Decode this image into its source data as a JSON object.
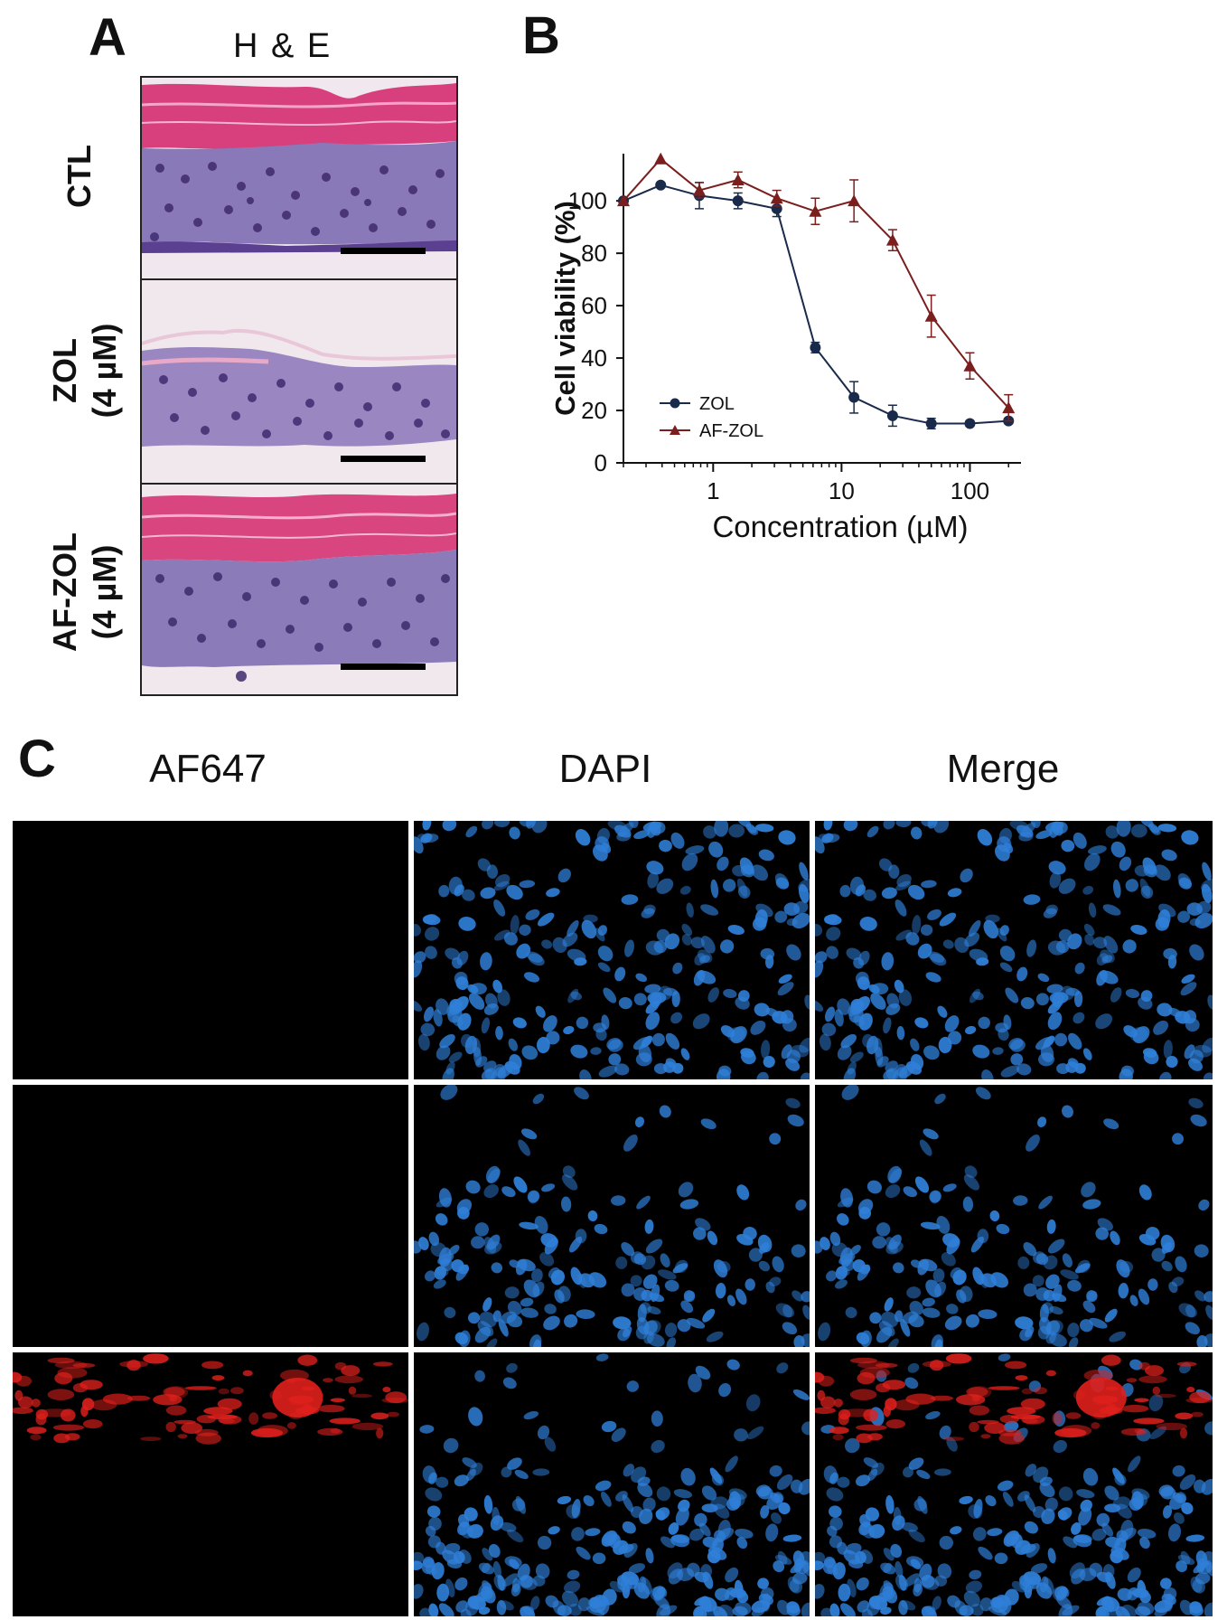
{
  "panel_a": {
    "label": "A",
    "title": "H & E",
    "rows": [
      {
        "line1": "CTL",
        "line2": ""
      },
      {
        "line1": "ZOL",
        "line2": "(4 µM)"
      },
      {
        "line1": "AF-ZOL",
        "line2": "(4 µM)"
      }
    ]
  },
  "panel_b": {
    "label": "B"
  },
  "panel_c": {
    "label": "C",
    "columns": [
      "AF647",
      "DAPI",
      "Merge"
    ]
  },
  "colors": {
    "zol": "#1a2a4a",
    "af_zol": "#7a1e1e",
    "dapi": "#2f7fd8",
    "af647": "#e0201c",
    "he_pink": "#d94f8a",
    "he_purple": "#6e5a9c"
  },
  "chart_data": {
    "type": "line",
    "xlabel": "Concentration (µM)",
    "ylabel": "Cell viability (%)",
    "xscale": "log",
    "xlim": [
      0.2,
      250
    ],
    "ylim": [
      0,
      118
    ],
    "xticks": [
      1,
      10,
      100
    ],
    "xtick_labels": [
      "1",
      "10",
      "100"
    ],
    "yticks": [
      0,
      20,
      40,
      60,
      80,
      100
    ],
    "ytick_labels": [
      "0",
      "20",
      "40",
      "60",
      "80",
      "100"
    ],
    "legend_position": "bottom-left",
    "series": [
      {
        "name": "ZOL",
        "marker": "circle",
        "color": "#1a2a4a",
        "x": [
          0.2,
          0.39,
          0.78,
          1.56,
          3.13,
          6.25,
          12.5,
          25,
          50,
          100,
          200
        ],
        "y": [
          100,
          106,
          102,
          100,
          97,
          44,
          25,
          18,
          15,
          15,
          16
        ],
        "err": [
          0,
          0,
          5,
          3,
          3,
          2,
          6,
          4,
          2,
          1,
          1
        ]
      },
      {
        "name": "AF-ZOL",
        "marker": "triangle",
        "color": "#7a1e1e",
        "x": [
          0.2,
          0.39,
          0.78,
          1.56,
          3.13,
          6.25,
          12.5,
          25,
          50,
          100,
          200
        ],
        "y": [
          100,
          116,
          104,
          108,
          101,
          96,
          100,
          85,
          56,
          37,
          21
        ],
        "err": [
          0,
          0,
          3,
          3,
          3,
          5,
          8,
          4,
          8,
          5,
          5
        ]
      }
    ]
  }
}
